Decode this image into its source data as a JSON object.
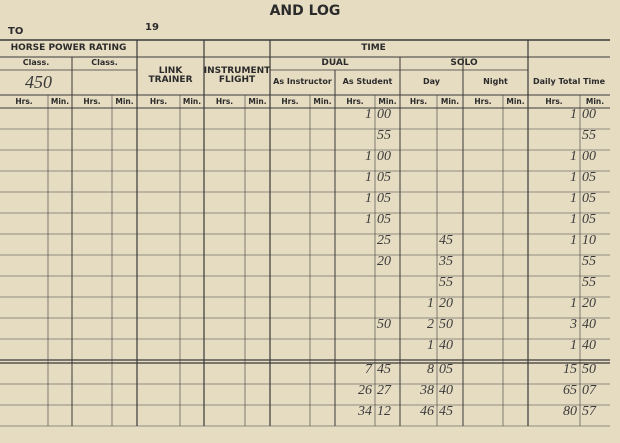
{
  "header": {
    "title": "AND LOG",
    "to": "TO",
    "year": "19"
  },
  "columns": {
    "horse_power_rating": "HORSE POWER RATING",
    "time": "TIME",
    "class_1": "Class.",
    "class_2": "Class.",
    "class_1_value": "450",
    "link_trainer": "LINK TRAINER",
    "instrument_flight": "INSTRUMENT FLIGHT",
    "dual": "DUAL",
    "solo": "SOLO",
    "as_instructor": "As Instructor",
    "as_student": "As Student",
    "day": "Day",
    "night": "Night",
    "daily_total_time": "Daily Total Time",
    "units": [
      "Hrs.",
      "Min.",
      "Hrs.",
      "Min.",
      "Hrs.",
      "Min.",
      "Hrs.",
      "Min.",
      "Hrs.",
      "Min.",
      "Hrs.",
      "Min.",
      "Hrs.",
      "Min.",
      "Hrs.",
      "Min.",
      "Hrs.",
      "Min."
    ]
  },
  "entries": [
    {
      "student_hrs": "1",
      "student_min": "00",
      "total_hrs": "1",
      "total_min": "00"
    },
    {
      "student_min": "55",
      "total_min": "55"
    },
    {
      "student_hrs": "1",
      "student_min": "00",
      "total_hrs": "1",
      "total_min": "00"
    },
    {
      "student_hrs": "1",
      "student_min": "05",
      "total_hrs": "1",
      "total_min": "05"
    },
    {
      "student_hrs": "1",
      "student_min": "05",
      "total_hrs": "1",
      "total_min": "05"
    },
    {
      "student_hrs": "1",
      "student_min": "05",
      "total_hrs": "1",
      "total_min": "05"
    },
    {
      "student_min": "25",
      "day_min": "45",
      "total_hrs": "1",
      "total_min": "10"
    },
    {
      "student_min": "20",
      "day_min": "35",
      "total_min": "55"
    },
    {
      "day_min": "55",
      "total_min": "55"
    },
    {
      "day_hrs": "1",
      "day_min": "20",
      "total_hrs": "1",
      "total_min": "20"
    },
    {
      "student_min": "50",
      "day_hrs": "2",
      "day_min": "50",
      "total_hrs": "3",
      "total_min": "40"
    },
    {
      "day_hrs": "1",
      "day_min": "40",
      "total_hrs": "1",
      "total_min": "40"
    }
  ],
  "totals": [
    {
      "student_hrs": "7",
      "student_min": "45",
      "day_hrs": "8",
      "day_min": "05",
      "total_hrs": "15",
      "total_min": "50"
    },
    {
      "student_hrs": "26",
      "student_min": "27",
      "day_hrs": "38",
      "day_min": "40",
      "total_hrs": "65",
      "total_min": "07"
    },
    {
      "student_hrs": "34",
      "student_min": "12",
      "day_hrs": "46",
      "day_min": "45",
      "total_hrs": "80",
      "total_min": "57"
    }
  ]
}
